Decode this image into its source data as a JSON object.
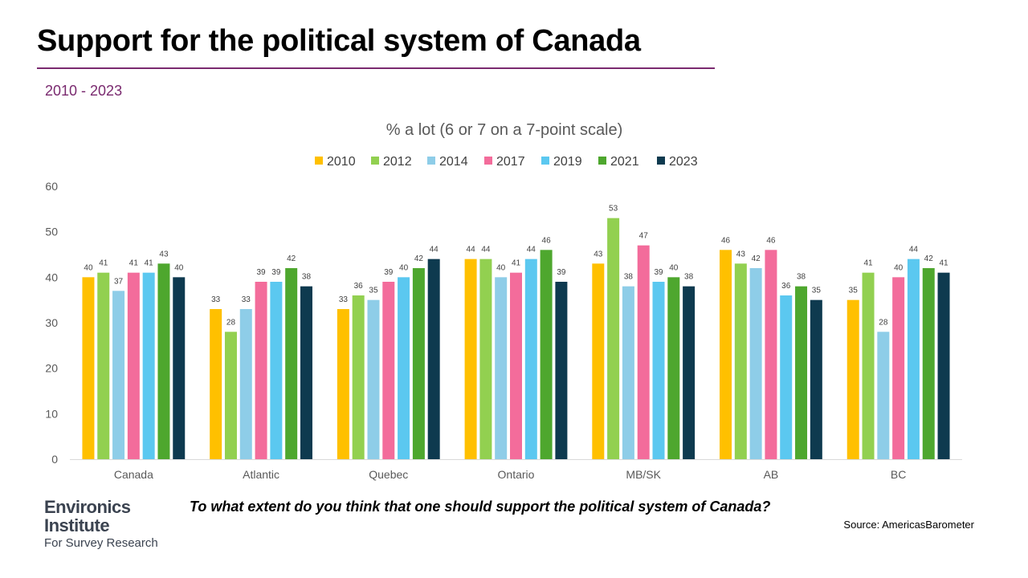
{
  "header": {
    "title": "Support for the political system of Canada",
    "subtitle": "2010 - 2023"
  },
  "footer": {
    "question": "To what extent do you think that one should support the political system of Canada?",
    "source": "Source: AmericasBarometer"
  },
  "logo": {
    "line1": "Environics",
    "line2": "Institute",
    "line3": "For Survey Research"
  },
  "colors": {
    "accent": "#7a2a6f",
    "logo_orange": "#e8743b"
  },
  "chart_data": {
    "type": "bar",
    "title": "% a lot (6 or 7 on a 7-point scale)",
    "xlabel": "",
    "ylabel": "",
    "ylim": [
      0,
      60
    ],
    "yticks": [
      0,
      10,
      20,
      30,
      40,
      50,
      60
    ],
    "grid": false,
    "legend_position": "top",
    "categories": [
      "Canada",
      "Atlantic",
      "Quebec",
      "Ontario",
      "MB/SK",
      "AB",
      "BC"
    ],
    "series": [
      {
        "name": "2010",
        "color": "#ffc000",
        "values": [
          40,
          33,
          33,
          44,
          43,
          46,
          35
        ]
      },
      {
        "name": "2012",
        "color": "#92d050",
        "values": [
          41,
          28,
          36,
          44,
          53,
          43,
          41
        ]
      },
      {
        "name": "2014",
        "color": "#8ecde8",
        "values": [
          37,
          33,
          35,
          40,
          38,
          42,
          28
        ]
      },
      {
        "name": "2017",
        "color": "#f36c9b",
        "values": [
          41,
          39,
          39,
          41,
          47,
          46,
          40
        ]
      },
      {
        "name": "2019",
        "color": "#5bc8f0",
        "values": [
          41,
          39,
          40,
          44,
          39,
          36,
          44
        ]
      },
      {
        "name": "2021",
        "color": "#4ea72e",
        "values": [
          43,
          42,
          42,
          46,
          40,
          38,
          42
        ]
      },
      {
        "name": "2023",
        "color": "#0e3a4f",
        "values": [
          40,
          38,
          44,
          39,
          38,
          35,
          41
        ]
      }
    ]
  }
}
